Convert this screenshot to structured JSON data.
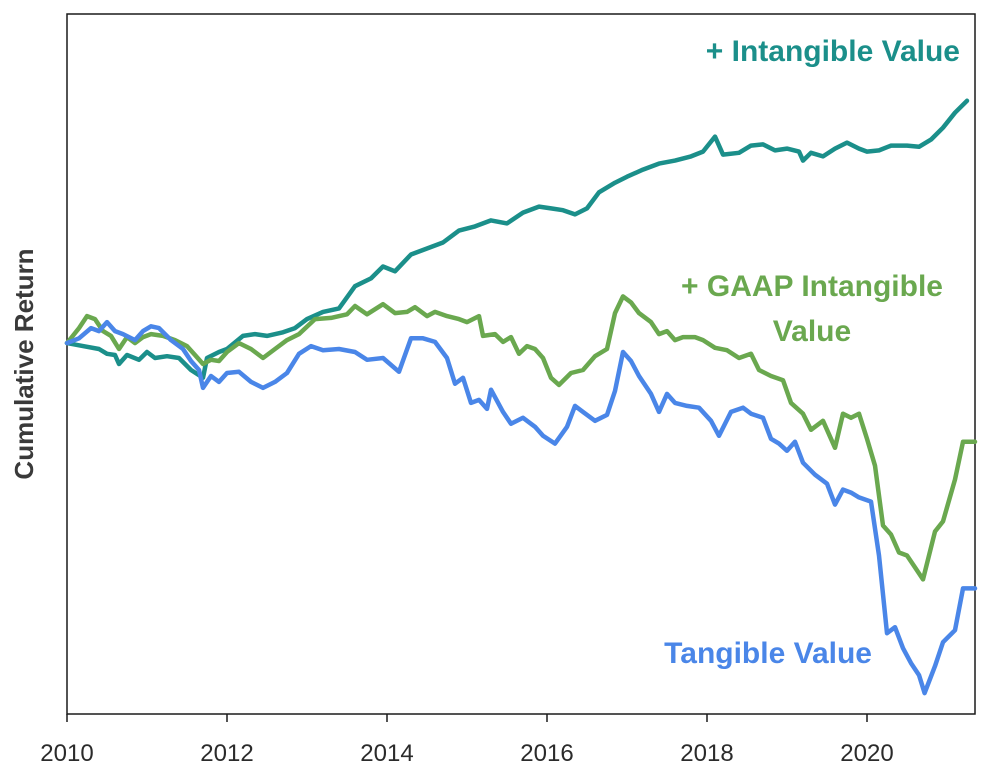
{
  "chart_data": {
    "type": "line",
    "title": "",
    "xlabel": "",
    "ylabel": "Cumulative Return",
    "xlim": [
      2010.0,
      2021.35
    ],
    "ylim": [
      -0.62,
      0.55
    ],
    "yticks_shown": false,
    "grid": false,
    "legend": "inline labels",
    "xticks": [
      2010,
      2012,
      2014,
      2016,
      2018,
      2020
    ],
    "xtick_labels": [
      "2010",
      "2012",
      "2014",
      "2016",
      "2018",
      "2020"
    ],
    "series": [
      {
        "name": "+ Intangible Value",
        "label_lines": [
          "+ Intangible Value"
        ],
        "color": "#1b8f8a",
        "points": [
          [
            2010.0,
            0.0
          ],
          [
            2010.2,
            -0.005
          ],
          [
            2010.4,
            -0.01
          ],
          [
            2010.5,
            -0.018
          ],
          [
            2010.6,
            -0.02
          ],
          [
            2010.65,
            -0.035
          ],
          [
            2010.75,
            -0.02
          ],
          [
            2010.9,
            -0.028
          ],
          [
            2011.0,
            -0.015
          ],
          [
            2011.1,
            -0.025
          ],
          [
            2011.25,
            -0.022
          ],
          [
            2011.4,
            -0.025
          ],
          [
            2011.55,
            -0.045
          ],
          [
            2011.7,
            -0.058
          ],
          [
            2011.75,
            -0.025
          ],
          [
            2011.9,
            -0.015
          ],
          [
            2012.0,
            -0.01
          ],
          [
            2012.2,
            0.012
          ],
          [
            2012.35,
            0.015
          ],
          [
            2012.5,
            0.012
          ],
          [
            2012.7,
            0.018
          ],
          [
            2012.85,
            0.025
          ],
          [
            2013.0,
            0.04
          ],
          [
            2013.2,
            0.052
          ],
          [
            2013.4,
            0.058
          ],
          [
            2013.6,
            0.095
          ],
          [
            2013.8,
            0.108
          ],
          [
            2013.95,
            0.128
          ],
          [
            2014.1,
            0.12
          ],
          [
            2014.3,
            0.148
          ],
          [
            2014.5,
            0.158
          ],
          [
            2014.7,
            0.168
          ],
          [
            2014.9,
            0.188
          ],
          [
            2015.1,
            0.195
          ],
          [
            2015.3,
            0.205
          ],
          [
            2015.5,
            0.2
          ],
          [
            2015.7,
            0.218
          ],
          [
            2015.9,
            0.228
          ],
          [
            2016.05,
            0.225
          ],
          [
            2016.2,
            0.222
          ],
          [
            2016.35,
            0.215
          ],
          [
            2016.5,
            0.225
          ],
          [
            2016.65,
            0.252
          ],
          [
            2016.85,
            0.268
          ],
          [
            2017.0,
            0.278
          ],
          [
            2017.2,
            0.29
          ],
          [
            2017.4,
            0.3
          ],
          [
            2017.6,
            0.305
          ],
          [
            2017.8,
            0.312
          ],
          [
            2017.95,
            0.32
          ],
          [
            2018.1,
            0.345
          ],
          [
            2018.2,
            0.315
          ],
          [
            2018.4,
            0.318
          ],
          [
            2018.55,
            0.33
          ],
          [
            2018.7,
            0.332
          ],
          [
            2018.85,
            0.322
          ],
          [
            2019.0,
            0.325
          ],
          [
            2019.15,
            0.32
          ],
          [
            2019.2,
            0.305
          ],
          [
            2019.3,
            0.318
          ],
          [
            2019.45,
            0.312
          ],
          [
            2019.6,
            0.325
          ],
          [
            2019.75,
            0.335
          ],
          [
            2019.9,
            0.325
          ],
          [
            2020.0,
            0.32
          ],
          [
            2020.15,
            0.322
          ],
          [
            2020.3,
            0.33
          ],
          [
            2020.5,
            0.33
          ],
          [
            2020.65,
            0.328
          ],
          [
            2020.8,
            0.34
          ],
          [
            2020.95,
            0.36
          ],
          [
            2021.1,
            0.385
          ],
          [
            2021.25,
            0.405
          ]
        ]
      },
      {
        "name": "+ GAAP Intangible Value",
        "label_lines": [
          "+ GAAP Intangible",
          "Value"
        ],
        "color": "#6aa84f",
        "points": [
          [
            2010.0,
            0.0
          ],
          [
            2010.15,
            0.025
          ],
          [
            2010.25,
            0.045
          ],
          [
            2010.35,
            0.04
          ],
          [
            2010.45,
            0.02
          ],
          [
            2010.55,
            0.012
          ],
          [
            2010.65,
            -0.01
          ],
          [
            2010.75,
            0.01
          ],
          [
            2010.85,
            0.0
          ],
          [
            2010.95,
            0.01
          ],
          [
            2011.05,
            0.015
          ],
          [
            2011.2,
            0.012
          ],
          [
            2011.35,
            0.005
          ],
          [
            2011.5,
            -0.005
          ],
          [
            2011.6,
            -0.02
          ],
          [
            2011.7,
            -0.035
          ],
          [
            2011.8,
            -0.028
          ],
          [
            2011.9,
            -0.03
          ],
          [
            2012.0,
            -0.015
          ],
          [
            2012.15,
            0.0
          ],
          [
            2012.3,
            -0.01
          ],
          [
            2012.45,
            -0.025
          ],
          [
            2012.6,
            -0.01
          ],
          [
            2012.75,
            0.005
          ],
          [
            2012.9,
            0.015
          ],
          [
            2013.1,
            0.04
          ],
          [
            2013.3,
            0.042
          ],
          [
            2013.5,
            0.048
          ],
          [
            2013.6,
            0.062
          ],
          [
            2013.75,
            0.048
          ],
          [
            2013.95,
            0.065
          ],
          [
            2014.1,
            0.05
          ],
          [
            2014.25,
            0.052
          ],
          [
            2014.35,
            0.06
          ],
          [
            2014.5,
            0.045
          ],
          [
            2014.6,
            0.052
          ],
          [
            2014.75,
            0.045
          ],
          [
            2014.9,
            0.04
          ],
          [
            2015.0,
            0.035
          ],
          [
            2015.15,
            0.045
          ],
          [
            2015.2,
            0.012
          ],
          [
            2015.35,
            0.015
          ],
          [
            2015.45,
            0.002
          ],
          [
            2015.55,
            0.01
          ],
          [
            2015.65,
            -0.018
          ],
          [
            2015.75,
            -0.005
          ],
          [
            2015.85,
            -0.01
          ],
          [
            2015.95,
            -0.025
          ],
          [
            2016.05,
            -0.058
          ],
          [
            2016.15,
            -0.07
          ],
          [
            2016.3,
            -0.05
          ],
          [
            2016.45,
            -0.045
          ],
          [
            2016.6,
            -0.022
          ],
          [
            2016.75,
            -0.01
          ],
          [
            2016.85,
            0.05
          ],
          [
            2016.95,
            0.078
          ],
          [
            2017.05,
            0.068
          ],
          [
            2017.15,
            0.05
          ],
          [
            2017.3,
            0.035
          ],
          [
            2017.4,
            0.015
          ],
          [
            2017.5,
            0.02
          ],
          [
            2017.6,
            0.005
          ],
          [
            2017.7,
            0.01
          ],
          [
            2017.85,
            0.01
          ],
          [
            2017.95,
            0.005
          ],
          [
            2018.1,
            -0.008
          ],
          [
            2018.25,
            -0.012
          ],
          [
            2018.4,
            -0.025
          ],
          [
            2018.55,
            -0.018
          ],
          [
            2018.65,
            -0.045
          ],
          [
            2018.8,
            -0.055
          ],
          [
            2018.95,
            -0.062
          ],
          [
            2019.05,
            -0.1
          ],
          [
            2019.2,
            -0.118
          ],
          [
            2019.3,
            -0.145
          ],
          [
            2019.45,
            -0.13
          ],
          [
            2019.6,
            -0.175
          ],
          [
            2019.7,
            -0.118
          ],
          [
            2019.8,
            -0.125
          ],
          [
            2019.9,
            -0.118
          ],
          [
            2020.0,
            -0.16
          ],
          [
            2020.1,
            -0.205
          ],
          [
            2020.2,
            -0.305
          ],
          [
            2020.3,
            -0.32
          ],
          [
            2020.4,
            -0.35
          ],
          [
            2020.5,
            -0.355
          ],
          [
            2020.6,
            -0.375
          ],
          [
            2020.7,
            -0.395
          ],
          [
            2020.85,
            -0.315
          ],
          [
            2020.95,
            -0.298
          ],
          [
            2021.1,
            -0.228
          ],
          [
            2021.2,
            -0.165
          ],
          [
            2021.35,
            -0.165
          ]
        ]
      },
      {
        "name": "Tangible Value",
        "label_lines": [
          "Tangible Value"
        ],
        "color": "#4a86e8",
        "points": [
          [
            2010.0,
            0.0
          ],
          [
            2010.15,
            0.008
          ],
          [
            2010.3,
            0.025
          ],
          [
            2010.4,
            0.02
          ],
          [
            2010.5,
            0.035
          ],
          [
            2010.6,
            0.02
          ],
          [
            2010.7,
            0.015
          ],
          [
            2010.85,
            0.005
          ],
          [
            2010.95,
            0.02
          ],
          [
            2011.05,
            0.028
          ],
          [
            2011.15,
            0.025
          ],
          [
            2011.3,
            0.005
          ],
          [
            2011.45,
            -0.01
          ],
          [
            2011.55,
            -0.03
          ],
          [
            2011.65,
            -0.045
          ],
          [
            2011.7,
            -0.075
          ],
          [
            2011.8,
            -0.055
          ],
          [
            2011.9,
            -0.065
          ],
          [
            2012.0,
            -0.05
          ],
          [
            2012.15,
            -0.048
          ],
          [
            2012.3,
            -0.065
          ],
          [
            2012.45,
            -0.075
          ],
          [
            2012.6,
            -0.065
          ],
          [
            2012.75,
            -0.05
          ],
          [
            2012.9,
            -0.018
          ],
          [
            2013.05,
            -0.005
          ],
          [
            2013.2,
            -0.012
          ],
          [
            2013.4,
            -0.01
          ],
          [
            2013.6,
            -0.015
          ],
          [
            2013.75,
            -0.028
          ],
          [
            2013.95,
            -0.025
          ],
          [
            2014.15,
            -0.048
          ],
          [
            2014.3,
            0.008
          ],
          [
            2014.45,
            0.008
          ],
          [
            2014.6,
            0.002
          ],
          [
            2014.75,
            -0.025
          ],
          [
            2014.85,
            -0.068
          ],
          [
            2014.95,
            -0.058
          ],
          [
            2015.05,
            -0.1
          ],
          [
            2015.15,
            -0.095
          ],
          [
            2015.25,
            -0.11
          ],
          [
            2015.3,
            -0.078
          ],
          [
            2015.45,
            -0.115
          ],
          [
            2015.55,
            -0.135
          ],
          [
            2015.7,
            -0.125
          ],
          [
            2015.85,
            -0.14
          ],
          [
            2015.95,
            -0.155
          ],
          [
            2016.1,
            -0.168
          ],
          [
            2016.25,
            -0.14
          ],
          [
            2016.35,
            -0.105
          ],
          [
            2016.45,
            -0.115
          ],
          [
            2016.6,
            -0.13
          ],
          [
            2016.75,
            -0.12
          ],
          [
            2016.85,
            -0.08
          ],
          [
            2016.95,
            -0.015
          ],
          [
            2017.05,
            -0.03
          ],
          [
            2017.15,
            -0.055
          ],
          [
            2017.3,
            -0.085
          ],
          [
            2017.4,
            -0.115
          ],
          [
            2017.5,
            -0.085
          ],
          [
            2017.6,
            -0.1
          ],
          [
            2017.75,
            -0.105
          ],
          [
            2017.9,
            -0.108
          ],
          [
            2018.05,
            -0.13
          ],
          [
            2018.15,
            -0.155
          ],
          [
            2018.3,
            -0.115
          ],
          [
            2018.45,
            -0.108
          ],
          [
            2018.55,
            -0.118
          ],
          [
            2018.7,
            -0.125
          ],
          [
            2018.8,
            -0.16
          ],
          [
            2018.9,
            -0.168
          ],
          [
            2019.0,
            -0.18
          ],
          [
            2019.1,
            -0.165
          ],
          [
            2019.2,
            -0.2
          ],
          [
            2019.35,
            -0.22
          ],
          [
            2019.5,
            -0.235
          ],
          [
            2019.6,
            -0.27
          ],
          [
            2019.7,
            -0.245
          ],
          [
            2019.8,
            -0.25
          ],
          [
            2019.9,
            -0.258
          ],
          [
            2020.05,
            -0.265
          ],
          [
            2020.15,
            -0.355
          ],
          [
            2020.25,
            -0.485
          ],
          [
            2020.35,
            -0.475
          ],
          [
            2020.45,
            -0.51
          ],
          [
            2020.55,
            -0.535
          ],
          [
            2020.65,
            -0.555
          ],
          [
            2020.72,
            -0.585
          ],
          [
            2020.85,
            -0.54
          ],
          [
            2020.95,
            -0.5
          ],
          [
            2021.1,
            -0.48
          ],
          [
            2021.2,
            -0.41
          ],
          [
            2021.35,
            -0.41
          ]
        ]
      }
    ]
  }
}
